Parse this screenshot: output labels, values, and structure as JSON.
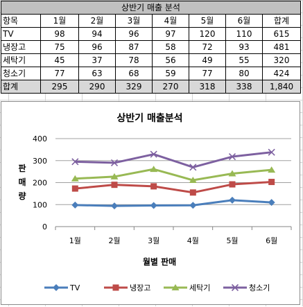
{
  "table": {
    "title": "상반기 매출 분석",
    "header": [
      "항목",
      "1월",
      "2월",
      "3월",
      "4월",
      "5월",
      "6월",
      "합계"
    ],
    "rows": [
      {
        "label": "TV",
        "values": [
          "98",
          "94",
          "96",
          "97",
          "120",
          "110",
          "615"
        ]
      },
      {
        "label": "냉장고",
        "values": [
          "75",
          "96",
          "87",
          "58",
          "72",
          "93",
          "481"
        ]
      },
      {
        "label": "세탁기",
        "values": [
          "45",
          "37",
          "78",
          "56",
          "49",
          "55",
          "320"
        ]
      },
      {
        "label": "청소기",
        "values": [
          "77",
          "63",
          "68",
          "59",
          "77",
          "80",
          "424"
        ]
      },
      {
        "label": "합계",
        "values": [
          "295",
          "290",
          "329",
          "270",
          "318",
          "338",
          "1,840"
        ]
      }
    ]
  },
  "chart_data": {
    "type": "line",
    "title": "상반기 매출분석",
    "xlabel": "월별 판매",
    "ylabel": "판매량",
    "categories": [
      "1월",
      "2월",
      "3월",
      "4월",
      "5월",
      "6월"
    ],
    "ylim": [
      0,
      400
    ],
    "yticks": [
      0,
      100,
      200,
      300,
      400
    ],
    "grid": true,
    "legend_position": "bottom",
    "series": [
      {
        "name": "TV",
        "values": [
          98,
          94,
          96,
          97,
          120,
          110
        ],
        "color": "#4a7ebb",
        "marker": "diamond"
      },
      {
        "name": "냉장고",
        "values": [
          173,
          190,
          183,
          155,
          192,
          203
        ],
        "color": "#be4b48",
        "marker": "square"
      },
      {
        "name": "세탁기",
        "values": [
          218,
          227,
          261,
          211,
          241,
          258
        ],
        "color": "#98b954",
        "marker": "triangle"
      },
      {
        "name": "청소기",
        "values": [
          295,
          290,
          329,
          270,
          318,
          338
        ],
        "color": "#7d60a0",
        "marker": "x"
      }
    ]
  }
}
